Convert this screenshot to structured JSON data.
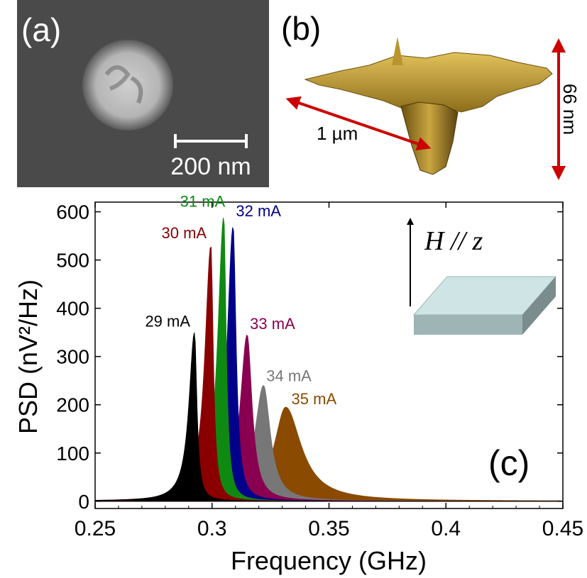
{
  "panels": {
    "a": {
      "label": "(a)",
      "scale_bar_label": "200 nm"
    },
    "b": {
      "label": "(b)",
      "width_label": "1 µm",
      "depth_label": "66 nm"
    },
    "c": {
      "label": "(c)",
      "field_label": "H // z"
    }
  },
  "colors": {
    "29 mA": "#000000",
    "30 mA": "#8a0000",
    "31 mA": "#0e8a12",
    "32 mA": "#00008a",
    "33 mA": "#8a0050",
    "34 mA": "#777777",
    "35 mA": "#8a4a00",
    "arrow_red": "#cc0000",
    "slab_top": "#cfe4e4",
    "slab_side": "#9fb4b4"
  },
  "chart_data": {
    "type": "area",
    "title": "",
    "xlabel": "Frequency (GHz)",
    "ylabel": "PSD (nV²/Hz)",
    "xlim": [
      0.25,
      0.45
    ],
    "ylim": [
      -15,
      620
    ],
    "xticks": [
      0.25,
      0.3,
      0.35,
      0.4,
      0.45
    ],
    "xtick_labels": [
      "0.25",
      "0.3",
      "0.35",
      "0.4",
      "0.45"
    ],
    "yticks": [
      0,
      100,
      200,
      300,
      400,
      500,
      600
    ],
    "ytick_labels": [
      "0",
      "100",
      "200",
      "300",
      "400",
      "500",
      "600"
    ],
    "grid": false,
    "legend": "none (labels placed at peaks)",
    "series": [
      {
        "name": "29 mA",
        "peak_x": 0.2925,
        "peak_y": 350,
        "hwhm_low": 0.0028,
        "hwhm_high": 0.0012
      },
      {
        "name": "30 mA",
        "peak_x": 0.2995,
        "peak_y": 530,
        "hwhm_low": 0.003,
        "hwhm_high": 0.0012
      },
      {
        "name": "31 mA",
        "peak_x": 0.305,
        "peak_y": 590,
        "hwhm_low": 0.003,
        "hwhm_high": 0.0012
      },
      {
        "name": "32 mA",
        "peak_x": 0.309,
        "peak_y": 570,
        "hwhm_low": 0.003,
        "hwhm_high": 0.0015
      },
      {
        "name": "33 mA",
        "peak_x": 0.315,
        "peak_y": 345,
        "hwhm_low": 0.0035,
        "hwhm_high": 0.0025
      },
      {
        "name": "34 mA",
        "peak_x": 0.322,
        "peak_y": 240,
        "hwhm_low": 0.0045,
        "hwhm_high": 0.0035
      },
      {
        "name": "35 mA",
        "peak_x": 0.3315,
        "peak_y": 195,
        "hwhm_low": 0.006,
        "hwhm_high": 0.008
      }
    ]
  }
}
